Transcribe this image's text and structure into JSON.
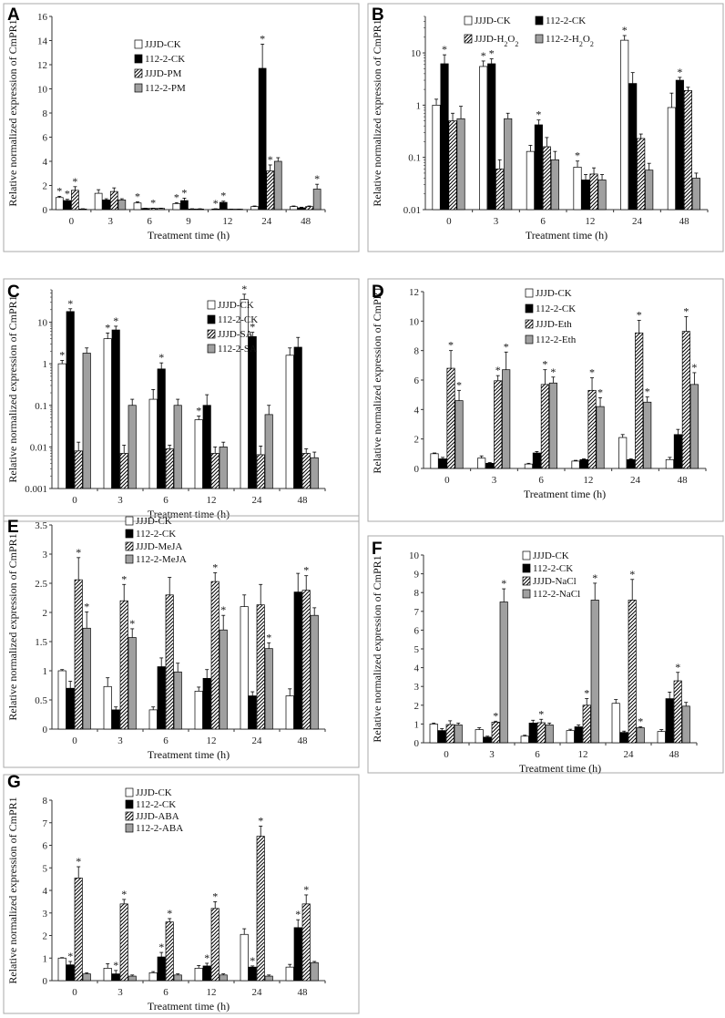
{
  "styles": {
    "colors": {
      "CK_open": "#ffffff",
      "CK_black": "#000000",
      "hatch_bg": "#ffffff",
      "gray": "#a0a0a0",
      "border": "#aaaaaa",
      "axis": "#333333"
    }
  },
  "chart_data": [
    {
      "panel": "A",
      "type": "bar",
      "scale": "linear",
      "ylim": [
        0,
        16
      ],
      "yticks": [
        0,
        2,
        4,
        6,
        8,
        10,
        12,
        14,
        16
      ],
      "categories": [
        "0",
        "3",
        "6",
        "9",
        "12",
        "24",
        "48"
      ],
      "xlabel": "Treatment time (h)",
      "ylabel": "Relative normalized expression of CmPR1",
      "legend_pos": "top-left",
      "series": [
        {
          "name": "JJJD-CK",
          "style": "white",
          "values": [
            1.0,
            1.35,
            0.55,
            0.5,
            0.05,
            0.25,
            0.25
          ],
          "errors": [
            0.1,
            0.3,
            0.1,
            0.08,
            0.02,
            0.05,
            0.05
          ],
          "stars": [
            true,
            false,
            true,
            true,
            true,
            false,
            false
          ]
        },
        {
          "name": "112-2-CK",
          "style": "black",
          "values": [
            0.75,
            0.8,
            0.1,
            0.75,
            0.6,
            11.7,
            0.15
          ],
          "errors": [
            0.1,
            0.1,
            0.02,
            0.2,
            0.1,
            2.0,
            0.05
          ],
          "stars": [
            true,
            false,
            false,
            true,
            true,
            true,
            false
          ]
        },
        {
          "name": "JJJD-PM",
          "style": "hatch",
          "values": [
            1.6,
            1.5,
            0.1,
            0.05,
            0.03,
            3.2,
            0.25
          ],
          "errors": [
            0.3,
            0.3,
            0.02,
            0.02,
            0.01,
            0.5,
            0.05
          ],
          "stars": [
            true,
            false,
            true,
            false,
            false,
            true,
            false
          ]
        },
        {
          "name": "112-2-PM",
          "style": "gray",
          "values": [
            0.05,
            0.8,
            0.1,
            0.05,
            0.03,
            4.0,
            1.7
          ],
          "errors": [
            0.02,
            0.1,
            0.02,
            0.02,
            0.01,
            0.3,
            0.4
          ],
          "stars": [
            false,
            false,
            false,
            false,
            false,
            false,
            true
          ]
        }
      ]
    },
    {
      "panel": "B",
      "type": "bar",
      "scale": "log",
      "ylim": [
        0.01,
        50
      ],
      "yticks": [
        0.01,
        0.1,
        1,
        10
      ],
      "categories": [
        "0",
        "3",
        "6",
        "12",
        "24",
        "48"
      ],
      "xlabel": "Treatment time (h)",
      "ylabel": "Relative normalized expression of CmPR1",
      "legend_pos": "top",
      "series": [
        {
          "name": "JJJD-CK",
          "style": "white",
          "values": [
            1.0,
            5.5,
            0.13,
            0.065,
            17.5,
            0.9
          ],
          "errors": [
            0.3,
            1.5,
            0.04,
            0.02,
            4,
            0.8
          ],
          "stars": [
            false,
            true,
            false,
            true,
            true,
            false
          ]
        },
        {
          "name": "112-2-CK",
          "style": "black",
          "values": [
            6.2,
            6.2,
            0.42,
            0.037,
            2.6,
            3.0
          ],
          "errors": [
            3,
            1.5,
            0.1,
            0.01,
            1.6,
            0.4
          ],
          "stars": [
            true,
            true,
            true,
            false,
            false,
            true
          ]
        },
        {
          "name": "JJJD-H2O2",
          "style": "hatch",
          "values": [
            0.5,
            0.06,
            0.16,
            0.048,
            0.23,
            1.9
          ],
          "errors": [
            0.2,
            0.03,
            0.08,
            0.015,
            0.05,
            0.3
          ],
          "stars": [
            false,
            false,
            false,
            false,
            false,
            false
          ]
        },
        {
          "name": "112-2-H2O2",
          "style": "gray",
          "values": [
            0.55,
            0.55,
            0.09,
            0.037,
            0.057,
            0.04
          ],
          "errors": [
            0.4,
            0.15,
            0.04,
            0.01,
            0.02,
            0.01
          ],
          "stars": [
            false,
            false,
            false,
            false,
            false,
            false
          ]
        }
      ]
    },
    {
      "panel": "C",
      "type": "bar",
      "scale": "log",
      "ylim": [
        0.001,
        60
      ],
      "yticks": [
        0.001,
        0.01,
        0.1,
        1,
        10
      ],
      "categories": [
        "0",
        "3",
        "6",
        "12",
        "24",
        "48"
      ],
      "xlabel": "Treatment time (h)",
      "ylabel": "Relative normalized expression of CmPR1",
      "legend_pos": "top-right",
      "series": [
        {
          "name": "JJJD-CK",
          "style": "white",
          "values": [
            1.0,
            4.0,
            0.14,
            0.045,
            35,
            1.6
          ],
          "errors": [
            0.2,
            1.5,
            0.1,
            0.01,
            12,
            0.8
          ],
          "stars": [
            true,
            true,
            false,
            true,
            true,
            false
          ]
        },
        {
          "name": "112-2-CK",
          "style": "black",
          "values": [
            18,
            6.5,
            0.75,
            0.1,
            4.5,
            2.5
          ],
          "errors": [
            3,
            1.5,
            0.3,
            0.08,
            1.2,
            1.8
          ],
          "stars": [
            true,
            true,
            true,
            false,
            true,
            false
          ]
        },
        {
          "name": "JJJD-SA",
          "style": "hatch",
          "values": [
            0.008,
            0.007,
            0.009,
            0.007,
            0.0065,
            0.007
          ],
          "errors": [
            0.005,
            0.004,
            0.002,
            0.003,
            0.004,
            0.002
          ],
          "stars": [
            false,
            false,
            false,
            false,
            false,
            false
          ]
        },
        {
          "name": "112-2-SA",
          "style": "gray",
          "values": [
            1.8,
            0.1,
            0.1,
            0.01,
            0.06,
            0.0055
          ],
          "errors": [
            0.6,
            0.04,
            0.04,
            0.003,
            0.04,
            0.002
          ],
          "stars": [
            false,
            false,
            false,
            false,
            false,
            false
          ]
        }
      ]
    },
    {
      "panel": "D",
      "type": "bar",
      "scale": "linear",
      "ylim": [
        0,
        12
      ],
      "yticks": [
        0,
        2,
        4,
        6,
        8,
        10,
        12
      ],
      "categories": [
        "0",
        "3",
        "6",
        "12",
        "24",
        "48"
      ],
      "xlabel": "Treatment time (h)",
      "ylabel": "Relative normalized expression of CmPR1",
      "legend_pos": "top-left",
      "series": [
        {
          "name": "JJJD-CK",
          "style": "white",
          "values": [
            1.0,
            0.7,
            0.3,
            0.5,
            2.1,
            0.6
          ],
          "errors": [
            0.05,
            0.15,
            0.05,
            0.05,
            0.2,
            0.15
          ],
          "stars": [
            false,
            false,
            false,
            false,
            false,
            false
          ]
        },
        {
          "name": "112-2-CK",
          "style": "black",
          "values": [
            0.65,
            0.35,
            1.05,
            0.6,
            0.6,
            2.3
          ],
          "errors": [
            0.1,
            0.05,
            0.1,
            0.05,
            0.05,
            0.35
          ],
          "stars": [
            false,
            false,
            false,
            false,
            false,
            false
          ]
        },
        {
          "name": "JJJD-Eth",
          "style": "hatch",
          "values": [
            6.8,
            5.95,
            5.7,
            5.3,
            9.2,
            9.3
          ],
          "errors": [
            1.2,
            0.35,
            1.0,
            0.85,
            0.85,
            1.0
          ],
          "stars": [
            true,
            true,
            true,
            true,
            true,
            true
          ]
        },
        {
          "name": "112-2-Eth",
          "style": "gray",
          "values": [
            4.6,
            6.7,
            5.8,
            4.2,
            4.5,
            5.7
          ],
          "errors": [
            0.7,
            1.2,
            0.4,
            0.6,
            0.35,
            0.8
          ],
          "stars": [
            true,
            true,
            true,
            true,
            true,
            true
          ]
        }
      ]
    },
    {
      "panel": "E",
      "type": "bar",
      "scale": "linear",
      "ylim": [
        0,
        3.5
      ],
      "yticks": [
        0,
        0.5,
        1,
        1.5,
        2,
        2.5,
        3,
        3.5
      ],
      "categories": [
        "0",
        "3",
        "6",
        "12",
        "24",
        "48"
      ],
      "xlabel": "Treatment time (h)",
      "ylabel": "Relative normalized expression of CmPR1",
      "legend_pos": "top-left",
      "series": [
        {
          "name": "JJJD-CK",
          "style": "white",
          "values": [
            1.0,
            0.73,
            0.33,
            0.65,
            2.1,
            0.57
          ],
          "errors": [
            0.02,
            0.15,
            0.05,
            0.07,
            0.2,
            0.12
          ],
          "stars": [
            false,
            false,
            false,
            false,
            false,
            false
          ]
        },
        {
          "name": "112-2-CK",
          "style": "black",
          "values": [
            0.7,
            0.33,
            1.07,
            0.87,
            0.57,
            2.35
          ],
          "errors": [
            0.12,
            0.05,
            0.15,
            0.15,
            0.07,
            0.32
          ],
          "stars": [
            false,
            false,
            false,
            false,
            false,
            false
          ]
        },
        {
          "name": "JJJD-MeJA",
          "style": "hatch",
          "values": [
            2.56,
            2.2,
            2.3,
            2.53,
            2.13,
            2.38
          ],
          "errors": [
            0.38,
            0.28,
            0.3,
            0.15,
            0.35,
            0.25
          ],
          "stars": [
            true,
            true,
            false,
            true,
            false,
            true
          ]
        },
        {
          "name": "112-2-MeJA",
          "style": "gray",
          "values": [
            1.73,
            1.57,
            0.98,
            1.7,
            1.38,
            1.95
          ],
          "errors": [
            0.28,
            0.15,
            0.15,
            0.25,
            0.1,
            0.13
          ],
          "stars": [
            true,
            true,
            false,
            true,
            true,
            false
          ]
        }
      ]
    },
    {
      "panel": "F",
      "type": "bar",
      "scale": "linear",
      "ylim": [
        0,
        10
      ],
      "yticks": [
        0,
        1,
        2,
        3,
        4,
        5,
        6,
        7,
        8,
        9,
        10
      ],
      "categories": [
        "0",
        "3",
        "6",
        "12",
        "24",
        "48"
      ],
      "xlabel": "Treatment time (h)",
      "ylabel": "Relative normalized expression of CmPR1",
      "legend_pos": "top-left",
      "series": [
        {
          "name": "JJJD-CK",
          "style": "white",
          "values": [
            1.0,
            0.7,
            0.35,
            0.65,
            2.1,
            0.6
          ],
          "errors": [
            0.05,
            0.1,
            0.05,
            0.07,
            0.2,
            0.1
          ],
          "stars": [
            false,
            false,
            false,
            false,
            false,
            false
          ]
        },
        {
          "name": "112-2-CK",
          "style": "black",
          "values": [
            0.65,
            0.3,
            1.05,
            0.85,
            0.55,
            2.35
          ],
          "errors": [
            0.1,
            0.05,
            0.15,
            0.1,
            0.07,
            0.35
          ],
          "stars": [
            false,
            false,
            false,
            false,
            false,
            false
          ]
        },
        {
          "name": "JJJD-NaCl",
          "style": "hatch",
          "values": [
            0.97,
            1.1,
            1.07,
            2.0,
            7.6,
            3.3
          ],
          "errors": [
            0.2,
            0.05,
            0.18,
            0.35,
            1.1,
            0.45
          ],
          "stars": [
            false,
            true,
            true,
            true,
            true,
            true
          ]
        },
        {
          "name": "112-2-NaCl",
          "style": "gray",
          "values": [
            0.95,
            7.5,
            0.95,
            7.6,
            0.8,
            1.95
          ],
          "errors": [
            0.1,
            0.7,
            0.1,
            0.9,
            0.05,
            0.2
          ],
          "stars": [
            false,
            true,
            false,
            true,
            true,
            false
          ]
        }
      ]
    },
    {
      "panel": "G",
      "type": "bar",
      "scale": "linear",
      "ylim": [
        0,
        8
      ],
      "yticks": [
        0,
        1,
        2,
        3,
        4,
        5,
        6,
        7,
        8
      ],
      "categories": [
        "0",
        "3",
        "6",
        "12",
        "24",
        "48"
      ],
      "xlabel": "Treatment time (h)",
      "ylabel": "Relative normalized expression of CmPR1",
      "legend_pos": "top-left",
      "series": [
        {
          "name": "JJJD-CK",
          "style": "white",
          "values": [
            1.0,
            0.55,
            0.35,
            0.55,
            2.05,
            0.6
          ],
          "errors": [
            0.02,
            0.2,
            0.05,
            0.12,
            0.25,
            0.12
          ],
          "stars": [
            false,
            false,
            false,
            false,
            false,
            false
          ]
        },
        {
          "name": "112-2-CK",
          "style": "black",
          "values": [
            0.7,
            0.3,
            1.05,
            0.65,
            0.6,
            2.35
          ],
          "errors": [
            0.15,
            0.15,
            0.2,
            0.12,
            0.05,
            0.35
          ],
          "stars": [
            true,
            true,
            true,
            true,
            true,
            true
          ]
        },
        {
          "name": "JJJD-ABA",
          "style": "hatch",
          "values": [
            4.55,
            3.4,
            2.6,
            3.2,
            6.4,
            3.4
          ],
          "errors": [
            0.5,
            0.2,
            0.15,
            0.3,
            0.45,
            0.4
          ],
          "stars": [
            true,
            true,
            true,
            true,
            true,
            true
          ]
        },
        {
          "name": "112-2-ABA",
          "style": "gray",
          "values": [
            0.3,
            0.2,
            0.25,
            0.25,
            0.2,
            0.8
          ],
          "errors": [
            0.05,
            0.05,
            0.05,
            0.05,
            0.05,
            0.05
          ],
          "stars": [
            false,
            false,
            false,
            false,
            false,
            false
          ]
        }
      ]
    }
  ]
}
